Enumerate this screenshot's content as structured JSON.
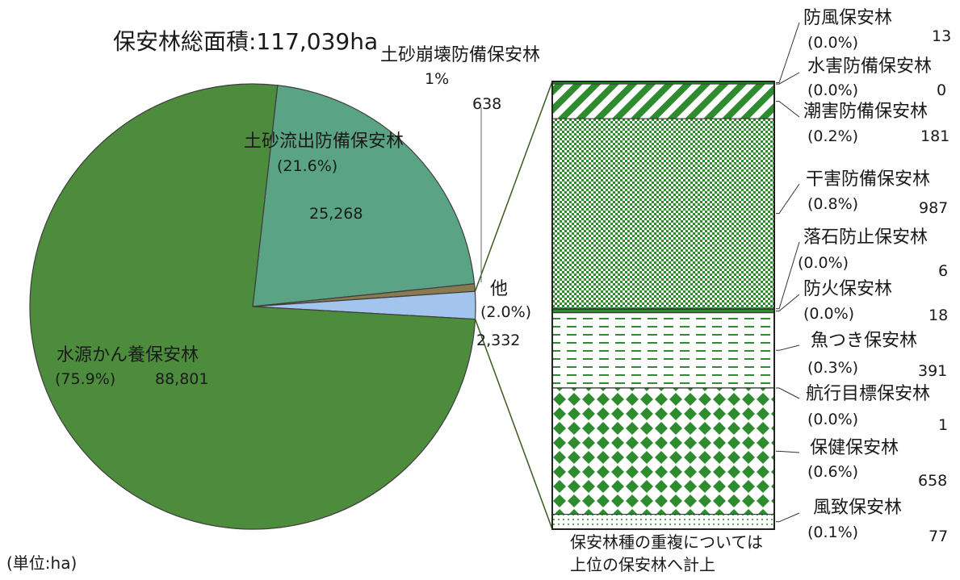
{
  "chart_data": {
    "type": "pie",
    "title": "保安林総面積:117,039ha",
    "unit_note": "(単位:ha)",
    "slices": [
      {
        "label": "水源かん養保安林",
        "pct": "(75.9%)",
        "value": 88801,
        "value_text": "88,801",
        "color": "#4d8c3d"
      },
      {
        "label": "土砂流出防備保安林",
        "pct": "(21.6%)",
        "value": 25268,
        "value_text": "25,268",
        "color": "#5aa384"
      },
      {
        "label": "土砂崩壊防備保安林",
        "pct": "1%",
        "value": 638,
        "value_text": "638",
        "color": "#8a7a52"
      },
      {
        "label": "他",
        "pct": "(2.0%)",
        "value": 2332,
        "value_text": "2,332",
        "color": "#a3c4ec"
      }
    ],
    "breakdown": {
      "of": "他",
      "items": [
        {
          "label": "防風保安林",
          "pct": "(0.0%)",
          "value": 13,
          "value_text": "13",
          "pattern": "none"
        },
        {
          "label": "水害防備保安林",
          "pct": "(0.0%)",
          "value": 0,
          "value_text": "0",
          "pattern": "none"
        },
        {
          "label": "潮害防備保安林",
          "pct": "(0.2%)",
          "value": 181,
          "value_text": "181",
          "pattern": "diagonal"
        },
        {
          "label": "干害防備保安林",
          "pct": "(0.8%)",
          "value": 987,
          "value_text": "987",
          "pattern": "checker"
        },
        {
          "label": "落石防止保安林",
          "pct": "(0.0%)",
          "value": 6,
          "value_text": "6",
          "pattern": "none"
        },
        {
          "label": "防火保安林",
          "pct": "(0.0%)",
          "value": 18,
          "value_text": "18",
          "pattern": "none"
        },
        {
          "label": "魚つき保安林",
          "pct": "(0.3%)",
          "value": 391,
          "value_text": "391",
          "pattern": "dashes"
        },
        {
          "label": "航行目標保安林",
          "pct": "(0.0%)",
          "value": 1,
          "value_text": "1",
          "pattern": "none"
        },
        {
          "label": "保健保安林",
          "pct": "(0.6%)",
          "value": 658,
          "value_text": "658",
          "pattern": "diamonds"
        },
        {
          "label": "風致保安林",
          "pct": "(0.1%)",
          "value": 77,
          "value_text": "77",
          "pattern": "dots"
        }
      ]
    },
    "footnote": [
      "保安林種の重複については",
      "上位の保安林へ計上"
    ],
    "colors": {
      "green": "#2e8b2e",
      "line": "#3a5a20"
    }
  }
}
